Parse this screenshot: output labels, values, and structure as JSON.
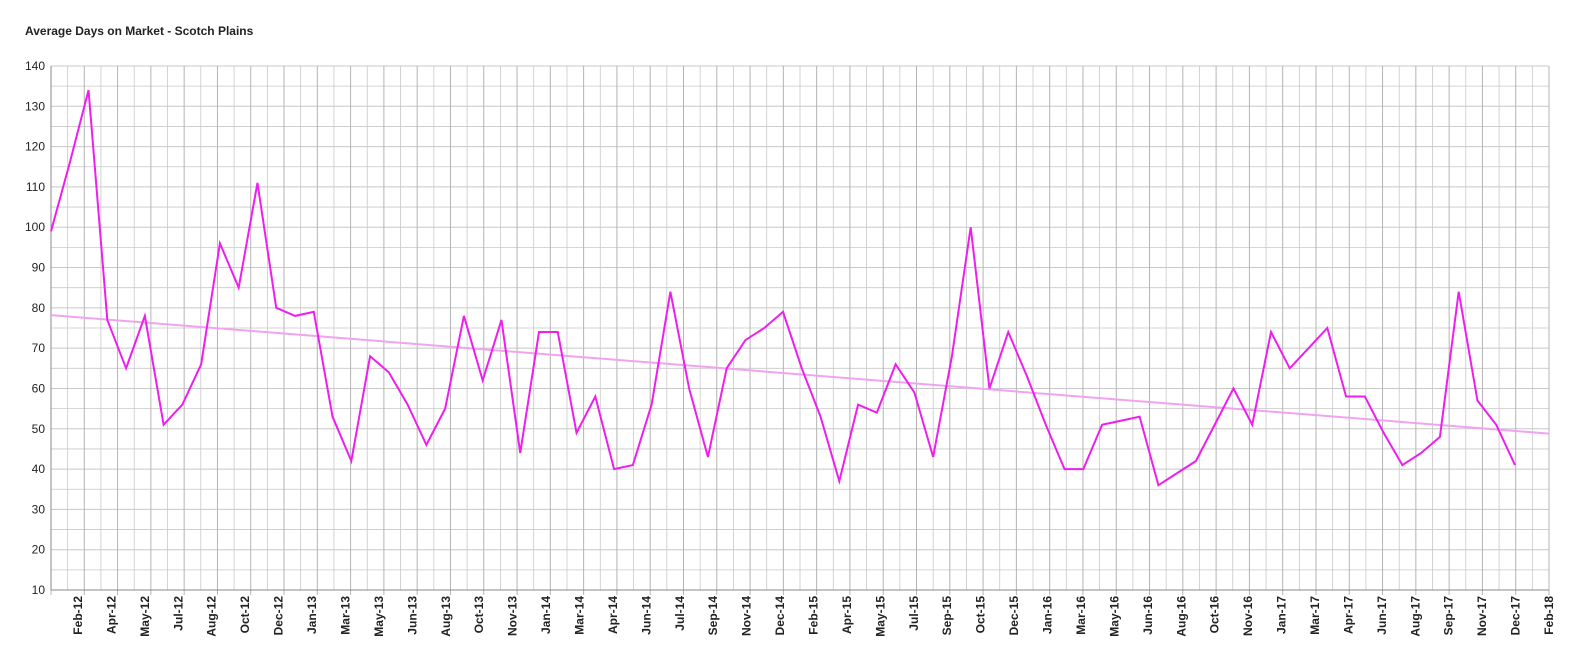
{
  "chart_data": {
    "type": "line",
    "title": "Average Days on Market - Scotch Plains",
    "xlabel": "",
    "ylabel": "",
    "ylim": [
      10,
      140
    ],
    "y_ticks": [
      10,
      20,
      30,
      40,
      50,
      60,
      70,
      80,
      90,
      100,
      110,
      120,
      130,
      140
    ],
    "grid": true,
    "legend": "none",
    "x_tick_labels": [
      "Feb-12",
      "Apr-12",
      "May-12",
      "Jul-12",
      "Aug-12",
      "Oct-12",
      "Dec-12",
      "Jan-13",
      "Mar-13",
      "May-13",
      "Jun-13",
      "Aug-13",
      "Oct-13",
      "Nov-13",
      "Jan-14",
      "Mar-14",
      "Apr-14",
      "Jun-14",
      "Jul-14",
      "Sep-14",
      "Nov-14",
      "Dec-14",
      "Feb-15",
      "Apr-15",
      "May-15",
      "Jul-15",
      "Sep-15",
      "Oct-15",
      "Dec-15",
      "Jan-16",
      "Mar-16",
      "May-16",
      "Jun-16",
      "Aug-16",
      "Oct-16",
      "Nov-16",
      "Jan-17",
      "Mar-17",
      "Apr-17",
      "Jun-17",
      "Aug-17",
      "Sep-17",
      "Nov-17",
      "Dec-17",
      "Feb-18"
    ],
    "series": [
      {
        "values": [
          99,
          116,
          134,
          77,
          65,
          78,
          51,
          56,
          66,
          96,
          85,
          111,
          80,
          78,
          79,
          53,
          42,
          68,
          64,
          56,
          46,
          55,
          78,
          62,
          77,
          44,
          74,
          74,
          49,
          58,
          40,
          41,
          56,
          84,
          60,
          43,
          65,
          72,
          75,
          79,
          65,
          53,
          37,
          56,
          54,
          66,
          59,
          43,
          68,
          100,
          60,
          74,
          63,
          51,
          40,
          40,
          51,
          52,
          53,
          36,
          39,
          42,
          51,
          60,
          51,
          74,
          65,
          70,
          75,
          58,
          58,
          49,
          41,
          44,
          48,
          84,
          57,
          51,
          41
        ],
        "color": "#ee1eee"
      },
      {
        "type": "trendline",
        "values": [
          78.2,
          48.8
        ],
        "color": "#f0a4f0"
      }
    ]
  },
  "colors": {
    "grid": "#c8c8c8",
    "axis": "#888888",
    "line": "#ee1eee",
    "trend": "#f0a4f0"
  }
}
